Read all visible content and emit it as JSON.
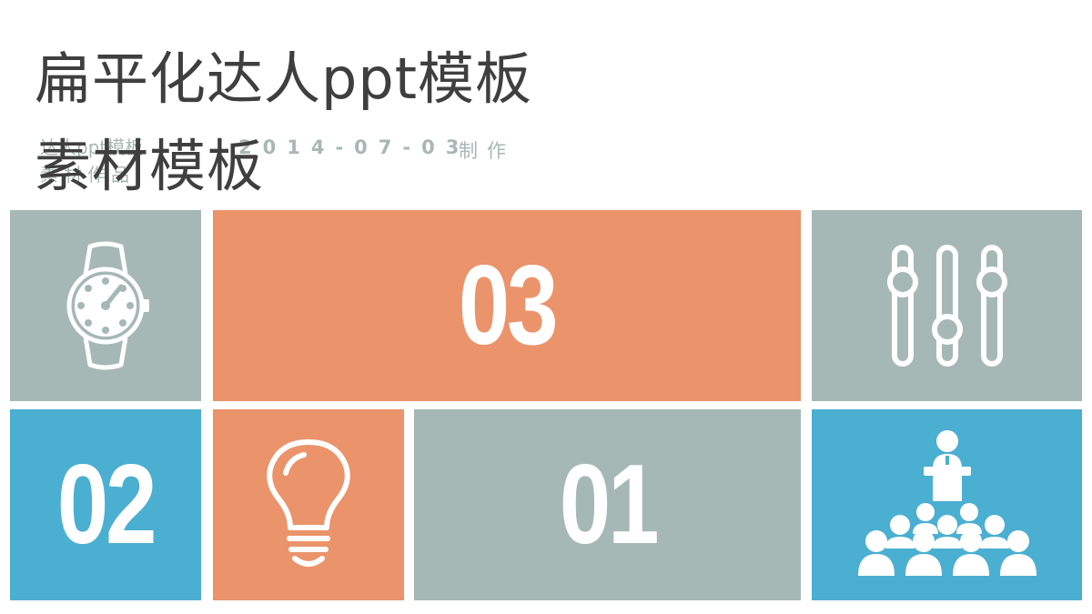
{
  "title": {
    "line1": "扁平化达人ppt模板",
    "line2": "素材模板"
  },
  "subtitle": {
    "line1": "达人ppt模板",
    "line2": "素材作品",
    "date": "2014-07-03",
    "maker": "制作"
  },
  "tiles": {
    "n03": "03",
    "n02": "02",
    "n01": "01"
  },
  "icons": {
    "watch": "watch-icon",
    "sliders": "sliders-icon",
    "bulb": "lightbulb-icon",
    "audience": "presentation-audience-icon"
  },
  "colors": {
    "gray": "#a6b8b6",
    "orange": "#eb936b",
    "blue": "#4bafd1",
    "title": "#3f3f3f",
    "subtitle": "#a9b7b4"
  }
}
